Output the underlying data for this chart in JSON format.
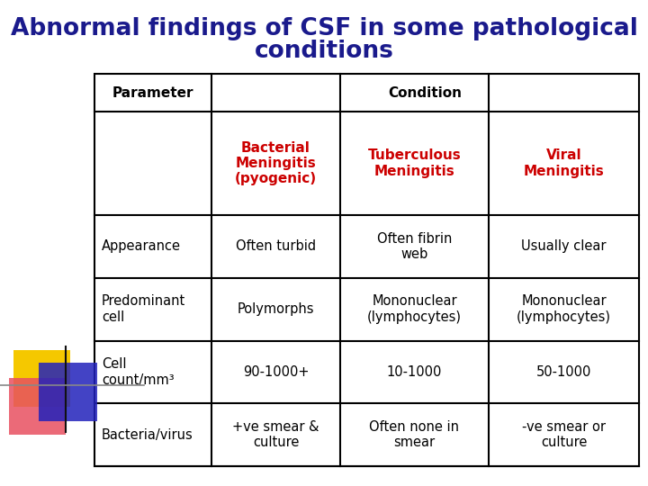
{
  "title_line1": "Abnormal findings of CSF in some pathological",
  "title_line2": "conditions",
  "title_color": "#1a1a8c",
  "title_fontsize": 19,
  "bg_color": "#ffffff",
  "table": {
    "header_row1_param": "Parameter",
    "header_row1_cond": "Condition",
    "header_row2": [
      "Bacterial\nMeningitis\n(pyogenic)",
      "Tuberculous\nMeningitis",
      "Viral\nMeningitis"
    ],
    "header_text_color": "#cc0000",
    "param_header_color": "#000000",
    "condition_header_color": "#000000",
    "rows": [
      [
        "Appearance",
        "Often turbid",
        "Often fibrin\nweb",
        "Usually clear"
      ],
      [
        "Predominant\ncell",
        "Polymorphs",
        "Mononuclear\n(lymphocytes)",
        "Mononuclear\n(lymphocytes)"
      ],
      [
        "Cell\ncount/mm³",
        "90-1000+",
        "10-1000",
        "50-1000"
      ],
      [
        "Bacteria/virus",
        "+ve smear &\nculture",
        "Often none in\nsmear",
        "-ve smear or\nculture"
      ]
    ],
    "cell_text_color": "#000000",
    "cell_fontsize": 10.5,
    "header_fontsize": 11,
    "border_color": "#000000",
    "border_lw": 1.5
  },
  "decoration": {
    "yellow_color": "#f5c800",
    "red_color": "#e85060",
    "blue_color": "#2222bb",
    "line_color": "#888888"
  }
}
